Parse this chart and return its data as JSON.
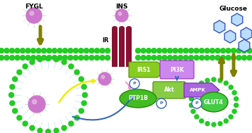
{
  "bg_color": "#ffffff",
  "fygl_label": "FYGL",
  "ins_label": "INS",
  "ir_label": "IR",
  "glucose_label": "Glucose",
  "irs1_label": "IRS1",
  "pi3k_label": "PI3K",
  "akt_label": "Akt",
  "ampk_label": "AMPK",
  "ptp1b_label": "PTP1B",
  "glut4_label": "GLUT4",
  "p_label": "P",
  "sphere_color": "#cc77cc",
  "sphere_ray_color": "#cceecc",
  "olive_color": "#808000",
  "blue_color": "#3366bb",
  "pink_color": "#ee88cc",
  "yellow_color": "#eeee00",
  "ir_bar_color": "#881133",
  "irs1_color": "#88cc22",
  "pi3k_color": "#cc88ee",
  "akt_color": "#88cc44",
  "ampk_color": "#aa66dd",
  "ptp1b_color": "#44bb22",
  "glut4_color": "#44cc44",
  "mem_dot_color": "#22cc22",
  "small_dot_color": "#22cc22",
  "dot_ray_color": "#bbddff",
  "glucose_edge": "#3355bb",
  "glucose_fill": "#bbddff"
}
